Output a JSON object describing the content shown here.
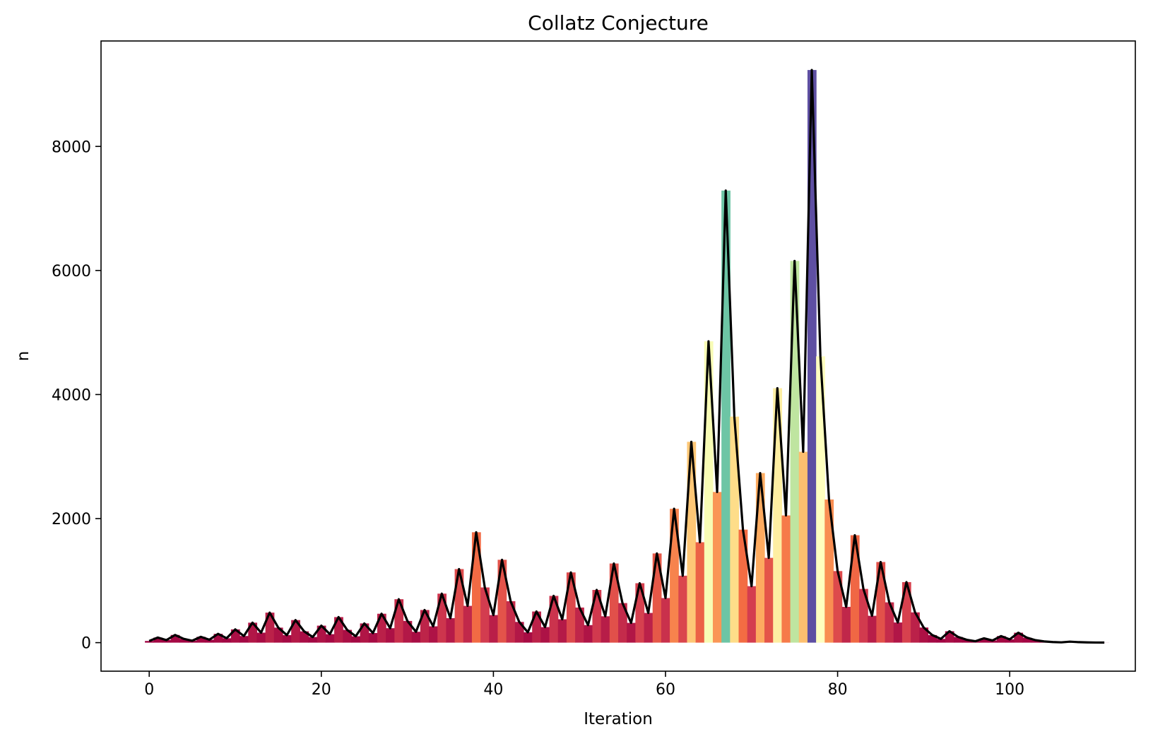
{
  "chart_data": {
    "type": "bar",
    "title": "Collatz Conjecture",
    "xlabel": "Iteration",
    "ylabel": "n",
    "xlim": [
      -5.6,
      114.6
    ],
    "ylim": [
      -460,
      9700
    ],
    "xticks": [
      0,
      20,
      40,
      60,
      80,
      100
    ],
    "yticks": [
      0,
      2000,
      4000,
      6000,
      8000
    ],
    "grid": false,
    "legend": "none",
    "colormap": "Spectral",
    "line_color": "#000000",
    "series": [
      {
        "x": [
          0,
          1,
          2,
          3,
          4,
          5,
          6,
          7,
          8,
          9,
          10,
          11,
          12,
          13,
          14,
          15,
          16,
          17,
          18,
          19,
          20,
          21,
          22,
          23,
          24,
          25,
          26,
          27,
          28,
          29,
          30,
          31,
          32,
          33,
          34,
          35,
          36,
          37,
          38,
          39,
          40,
          41,
          42,
          43,
          44,
          45,
          46,
          47,
          48,
          49,
          50,
          51,
          52,
          53,
          54,
          55,
          56,
          57,
          58,
          59,
          60,
          61,
          62,
          63,
          64,
          65,
          66,
          67,
          68,
          69,
          70,
          71,
          72,
          73,
          74,
          75,
          76,
          77,
          78,
          79,
          80,
          81,
          82,
          83,
          84,
          85,
          86,
          87,
          88,
          89,
          90,
          91,
          92,
          93,
          94,
          95,
          96,
          97,
          98,
          99,
          100,
          101,
          102,
          103,
          104,
          105,
          106,
          107,
          108,
          109,
          110,
          111
        ],
        "values": [
          27,
          82,
          41,
          124,
          62,
          31,
          94,
          47,
          142,
          71,
          214,
          107,
          322,
          161,
          484,
          242,
          121,
          364,
          182,
          91,
          274,
          137,
          412,
          206,
          103,
          310,
          155,
          466,
          233,
          700,
          350,
          175,
          526,
          263,
          790,
          395,
          1186,
          593,
          1780,
          890,
          445,
          1336,
          668,
          334,
          167,
          502,
          251,
          754,
          377,
          1132,
          566,
          283,
          850,
          425,
          1276,
          638,
          319,
          958,
          479,
          1438,
          719,
          2158,
          1079,
          3238,
          1619,
          4858,
          2429,
          7288,
          3644,
          1822,
          911,
          2734,
          1367,
          4102,
          2051,
          6154,
          3077,
          9232,
          4616,
          2308,
          1154,
          577,
          1732,
          866,
          433,
          1300,
          650,
          325,
          976,
          488,
          244,
          122,
          61,
          184,
          92,
          46,
          23,
          70,
          35,
          106,
          53,
          160,
          80,
          40,
          20,
          10,
          5,
          16,
          8,
          4,
          2,
          1
        ]
      }
    ]
  }
}
